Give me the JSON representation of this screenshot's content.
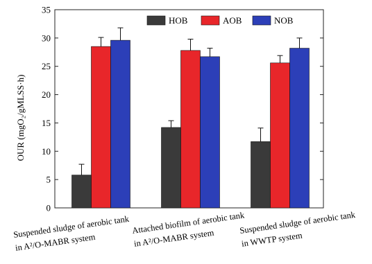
{
  "chart_data": {
    "type": "bar",
    "ylabel": "OUR (mgO₂/gMLSS·h)",
    "ylim": [
      0,
      35
    ],
    "yticks": [
      0,
      5,
      10,
      15,
      20,
      25,
      30,
      35
    ],
    "categories": [
      [
        "Suspended sludge of aerobic tank",
        "in A²/O-MABR system"
      ],
      [
        "Attached biofilm of aerobic tank",
        "in A²/O-MABR system"
      ],
      [
        "Suspended sludge of aerobic tank",
        "in WWTP system"
      ]
    ],
    "series": [
      {
        "name": "HOB",
        "color": "#3a3a3a",
        "values": [
          5.8,
          14.2,
          11.7
        ],
        "errors": [
          1.9,
          1.2,
          2.4
        ]
      },
      {
        "name": "AOB",
        "color": "#e8262a",
        "values": [
          28.5,
          27.8,
          25.6
        ],
        "errors": [
          1.6,
          2.0,
          1.3
        ]
      },
      {
        "name": "NOB",
        "color": "#2c3fb8",
        "values": [
          29.6,
          26.7,
          28.2
        ],
        "errors": [
          2.2,
          1.5,
          1.8
        ]
      }
    ],
    "legend_position": "top"
  }
}
